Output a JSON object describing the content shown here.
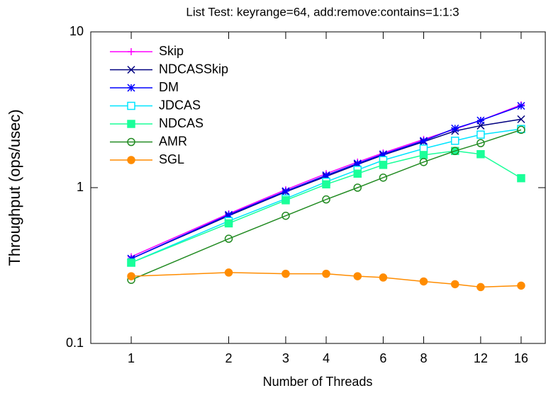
{
  "chart_data": {
    "type": "line",
    "title": "List Test: keyrange=64, add:remove:contains=1:1:3",
    "x_label": "Number of Threads",
    "y_label": "Throughput (ops/usec)",
    "x": [
      1,
      2,
      3,
      4,
      5,
      6,
      8,
      10,
      12,
      16
    ],
    "xscale": "log",
    "yscale": "log",
    "xlim": [
      0.75,
      19
    ],
    "ylim": [
      0.1,
      10
    ],
    "xticks": [
      1,
      2,
      3,
      4,
      6,
      8,
      12,
      16
    ],
    "yticks": [
      0.1,
      1,
      10
    ],
    "legend": "upper left",
    "series": [
      {
        "name": "Skip",
        "color": "#ff00ff",
        "marker": "plus",
        "values": [
          0.36,
          0.68,
          0.97,
          1.23,
          1.46,
          1.67,
          2.04,
          2.38,
          2.7,
          3.4
        ]
      },
      {
        "name": "NDCASSkip",
        "color": "#000080",
        "marker": "cross",
        "values": [
          0.35,
          0.66,
          0.94,
          1.18,
          1.41,
          1.62,
          1.97,
          2.31,
          2.5,
          2.75
        ]
      },
      {
        "name": "DM",
        "color": "#0000ff",
        "marker": "star",
        "values": [
          0.35,
          0.67,
          0.95,
          1.2,
          1.43,
          1.64,
          2.0,
          2.4,
          2.7,
          3.35
        ]
      },
      {
        "name": "JDCAS",
        "color": "#00e5ff",
        "marker": "square-open",
        "values": [
          0.33,
          0.61,
          0.85,
          1.09,
          1.3,
          1.5,
          1.78,
          2.0,
          2.19,
          2.38
        ]
      },
      {
        "name": "NDCAS",
        "color": "#1aff99",
        "marker": "square-filled",
        "values": [
          0.33,
          0.59,
          0.83,
          1.05,
          1.23,
          1.4,
          1.62,
          1.72,
          1.64,
          1.15
        ]
      },
      {
        "name": "AMR",
        "color": "#228b22",
        "marker": "circle-open",
        "values": [
          0.256,
          0.47,
          0.66,
          0.84,
          1.0,
          1.16,
          1.46,
          1.72,
          1.93,
          2.35
        ]
      },
      {
        "name": "SGL",
        "color": "#ff8c00",
        "marker": "circle-filled",
        "values": [
          0.27,
          0.285,
          0.28,
          0.28,
          0.27,
          0.265,
          0.25,
          0.24,
          0.23,
          0.235
        ]
      }
    ]
  }
}
